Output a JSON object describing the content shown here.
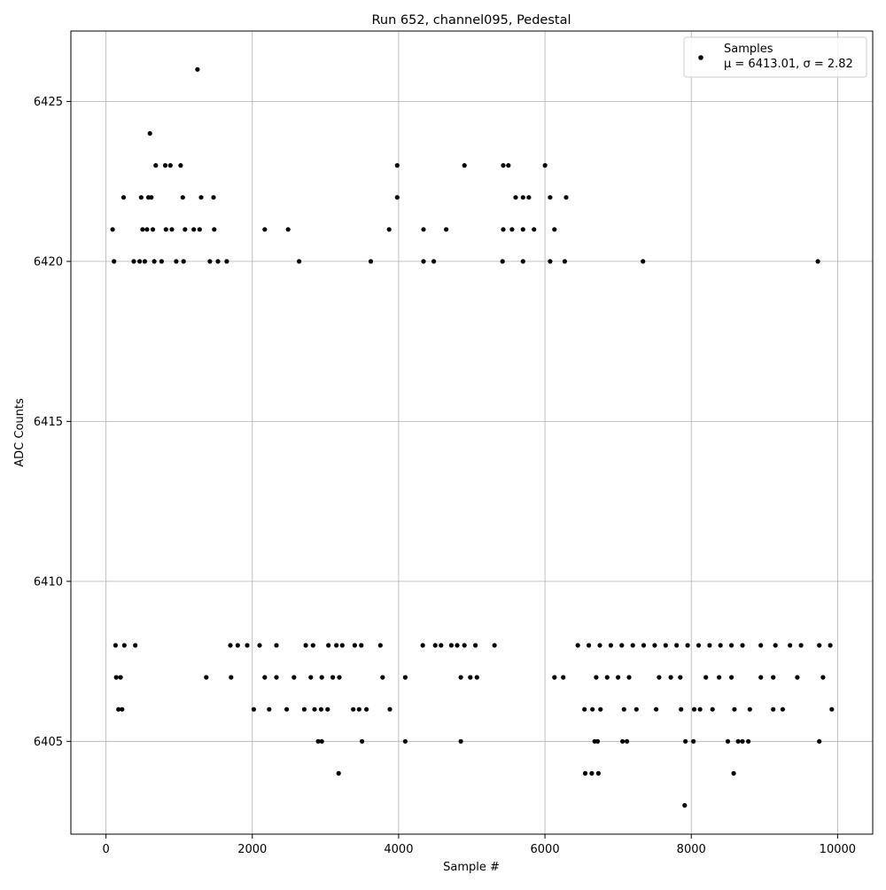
{
  "chart_data": {
    "type": "scatter",
    "title": "Run 652, channel095, Pedestal",
    "xlabel": "Sample #",
    "ylabel": "ADC Counts",
    "xlim": [
      -480,
      10480
    ],
    "ylim": [
      6402.1,
      6427.2
    ],
    "xticks": [
      0,
      2000,
      4000,
      6000,
      8000,
      10000
    ],
    "yticks": [
      6405,
      6410,
      6415,
      6420,
      6425
    ],
    "xtick_labels": [
      "0",
      "2000",
      "4000",
      "6000",
      "8000",
      "10000"
    ],
    "ytick_labels": [
      "6405",
      "6410",
      "6415",
      "6420",
      "6425"
    ],
    "grid": true,
    "legend_position": "top-right",
    "marker_color": "#000000",
    "series": [
      {
        "name": "Samples",
        "stats_label": "μ = 6413.01, σ = 2.82",
        "n_samples": 10000,
        "points": [
          {
            "x": 1250,
            "y": 6426
          },
          {
            "x": 600,
            "y": 6424
          },
          {
            "x": 680,
            "y": 6423
          },
          {
            "x": 810,
            "y": 6423
          },
          {
            "x": 880,
            "y": 6423
          },
          {
            "x": 1020,
            "y": 6423
          },
          {
            "x": 3980,
            "y": 6423
          },
          {
            "x": 4900,
            "y": 6423
          },
          {
            "x": 5430,
            "y": 6423
          },
          {
            "x": 5500,
            "y": 6423
          },
          {
            "x": 6000,
            "y": 6423
          },
          {
            "x": 240,
            "y": 6422
          },
          {
            "x": 480,
            "y": 6422
          },
          {
            "x": 580,
            "y": 6422
          },
          {
            "x": 620,
            "y": 6422
          },
          {
            "x": 1050,
            "y": 6422
          },
          {
            "x": 1300,
            "y": 6422
          },
          {
            "x": 1470,
            "y": 6422
          },
          {
            "x": 3980,
            "y": 6422
          },
          {
            "x": 5600,
            "y": 6422
          },
          {
            "x": 5700,
            "y": 6422
          },
          {
            "x": 5780,
            "y": 6422
          },
          {
            "x": 6070,
            "y": 6422
          },
          {
            "x": 6290,
            "y": 6422
          },
          {
            "x": 90,
            "y": 6421
          },
          {
            "x": 500,
            "y": 6421
          },
          {
            "x": 560,
            "y": 6421
          },
          {
            "x": 640,
            "y": 6421
          },
          {
            "x": 820,
            "y": 6421
          },
          {
            "x": 900,
            "y": 6421
          },
          {
            "x": 1080,
            "y": 6421
          },
          {
            "x": 1200,
            "y": 6421
          },
          {
            "x": 1280,
            "y": 6421
          },
          {
            "x": 1480,
            "y": 6421
          },
          {
            "x": 2170,
            "y": 6421
          },
          {
            "x": 2490,
            "y": 6421
          },
          {
            "x": 3870,
            "y": 6421
          },
          {
            "x": 4340,
            "y": 6421
          },
          {
            "x": 4650,
            "y": 6421
          },
          {
            "x": 5430,
            "y": 6421
          },
          {
            "x": 5550,
            "y": 6421
          },
          {
            "x": 5700,
            "y": 6421
          },
          {
            "x": 5850,
            "y": 6421
          },
          {
            "x": 6130,
            "y": 6421
          },
          {
            "x": 110,
            "y": 6420
          },
          {
            "x": 380,
            "y": 6420
          },
          {
            "x": 460,
            "y": 6420
          },
          {
            "x": 530,
            "y": 6420
          },
          {
            "x": 660,
            "y": 6420
          },
          {
            "x": 760,
            "y": 6420
          },
          {
            "x": 960,
            "y": 6420
          },
          {
            "x": 1060,
            "y": 6420
          },
          {
            "x": 1420,
            "y": 6420
          },
          {
            "x": 1530,
            "y": 6420
          },
          {
            "x": 1650,
            "y": 6420
          },
          {
            "x": 2640,
            "y": 6420
          },
          {
            "x": 3620,
            "y": 6420
          },
          {
            "x": 4340,
            "y": 6420
          },
          {
            "x": 4480,
            "y": 6420
          },
          {
            "x": 5420,
            "y": 6420
          },
          {
            "x": 5700,
            "y": 6420
          },
          {
            "x": 6070,
            "y": 6420
          },
          {
            "x": 6270,
            "y": 6420
          },
          {
            "x": 7340,
            "y": 6420
          },
          {
            "x": 9730,
            "y": 6420
          },
          {
            "x": 3180,
            "y": 6404
          },
          {
            "x": 6550,
            "y": 6404
          },
          {
            "x": 6640,
            "y": 6404
          },
          {
            "x": 6730,
            "y": 6404
          },
          {
            "x": 8580,
            "y": 6404
          },
          {
            "x": 7910,
            "y": 6403
          },
          {
            "x": 2900,
            "y": 6405
          },
          {
            "x": 2950,
            "y": 6405
          },
          {
            "x": 3500,
            "y": 6405
          },
          {
            "x": 4090,
            "y": 6405
          },
          {
            "x": 4850,
            "y": 6405
          },
          {
            "x": 6680,
            "y": 6405
          },
          {
            "x": 6720,
            "y": 6405
          },
          {
            "x": 7060,
            "y": 6405
          },
          {
            "x": 7120,
            "y": 6405
          },
          {
            "x": 7920,
            "y": 6405
          },
          {
            "x": 8030,
            "y": 6405
          },
          {
            "x": 8500,
            "y": 6405
          },
          {
            "x": 8640,
            "y": 6405
          },
          {
            "x": 8700,
            "y": 6405
          },
          {
            "x": 8780,
            "y": 6405
          },
          {
            "x": 9750,
            "y": 6405
          },
          {
            "x": 170,
            "y": 6406
          },
          {
            "x": 220,
            "y": 6406
          },
          {
            "x": 2020,
            "y": 6406
          },
          {
            "x": 2230,
            "y": 6406
          },
          {
            "x": 2470,
            "y": 6406
          },
          {
            "x": 2710,
            "y": 6406
          },
          {
            "x": 2850,
            "y": 6406
          },
          {
            "x": 2940,
            "y": 6406
          },
          {
            "x": 3030,
            "y": 6406
          },
          {
            "x": 3380,
            "y": 6406
          },
          {
            "x": 3460,
            "y": 6406
          },
          {
            "x": 3560,
            "y": 6406
          },
          {
            "x": 3880,
            "y": 6406
          },
          {
            "x": 6540,
            "y": 6406
          },
          {
            "x": 6650,
            "y": 6406
          },
          {
            "x": 6760,
            "y": 6406
          },
          {
            "x": 7080,
            "y": 6406
          },
          {
            "x": 7250,
            "y": 6406
          },
          {
            "x": 7520,
            "y": 6406
          },
          {
            "x": 7860,
            "y": 6406
          },
          {
            "x": 8040,
            "y": 6406
          },
          {
            "x": 8120,
            "y": 6406
          },
          {
            "x": 8290,
            "y": 6406
          },
          {
            "x": 8590,
            "y": 6406
          },
          {
            "x": 8800,
            "y": 6406
          },
          {
            "x": 9120,
            "y": 6406
          },
          {
            "x": 9250,
            "y": 6406
          },
          {
            "x": 9920,
            "y": 6406
          },
          {
            "x": 140,
            "y": 6407
          },
          {
            "x": 200,
            "y": 6407
          },
          {
            "x": 1370,
            "y": 6407
          },
          {
            "x": 1710,
            "y": 6407
          },
          {
            "x": 2170,
            "y": 6407
          },
          {
            "x": 2330,
            "y": 6407
          },
          {
            "x": 2570,
            "y": 6407
          },
          {
            "x": 2800,
            "y": 6407
          },
          {
            "x": 2950,
            "y": 6407
          },
          {
            "x": 3100,
            "y": 6407
          },
          {
            "x": 3190,
            "y": 6407
          },
          {
            "x": 3780,
            "y": 6407
          },
          {
            "x": 4090,
            "y": 6407
          },
          {
            "x": 4850,
            "y": 6407
          },
          {
            "x": 4980,
            "y": 6407
          },
          {
            "x": 5070,
            "y": 6407
          },
          {
            "x": 6130,
            "y": 6407
          },
          {
            "x": 6250,
            "y": 6407
          },
          {
            "x": 6700,
            "y": 6407
          },
          {
            "x": 6850,
            "y": 6407
          },
          {
            "x": 7000,
            "y": 6407
          },
          {
            "x": 7150,
            "y": 6407
          },
          {
            "x": 7560,
            "y": 6407
          },
          {
            "x": 7720,
            "y": 6407
          },
          {
            "x": 7850,
            "y": 6407
          },
          {
            "x": 8200,
            "y": 6407
          },
          {
            "x": 8380,
            "y": 6407
          },
          {
            "x": 8550,
            "y": 6407
          },
          {
            "x": 8950,
            "y": 6407
          },
          {
            "x": 9120,
            "y": 6407
          },
          {
            "x": 9450,
            "y": 6407
          },
          {
            "x": 9800,
            "y": 6407
          },
          {
            "x": 130,
            "y": 6408
          },
          {
            "x": 250,
            "y": 6408
          },
          {
            "x": 400,
            "y": 6408
          },
          {
            "x": 1700,
            "y": 6408
          },
          {
            "x": 1800,
            "y": 6408
          },
          {
            "x": 1930,
            "y": 6408
          },
          {
            "x": 2100,
            "y": 6408
          },
          {
            "x": 2330,
            "y": 6408
          },
          {
            "x": 2730,
            "y": 6408
          },
          {
            "x": 2830,
            "y": 6408
          },
          {
            "x": 3040,
            "y": 6408
          },
          {
            "x": 3150,
            "y": 6408
          },
          {
            "x": 3230,
            "y": 6408
          },
          {
            "x": 3400,
            "y": 6408
          },
          {
            "x": 3490,
            "y": 6408
          },
          {
            "x": 3750,
            "y": 6408
          },
          {
            "x": 4330,
            "y": 6408
          },
          {
            "x": 4500,
            "y": 6408
          },
          {
            "x": 4580,
            "y": 6408
          },
          {
            "x": 4720,
            "y": 6408
          },
          {
            "x": 4800,
            "y": 6408
          },
          {
            "x": 4900,
            "y": 6408
          },
          {
            "x": 5050,
            "y": 6408
          },
          {
            "x": 5310,
            "y": 6408
          },
          {
            "x": 6450,
            "y": 6408
          },
          {
            "x": 6600,
            "y": 6408
          },
          {
            "x": 6750,
            "y": 6408
          },
          {
            "x": 6900,
            "y": 6408
          },
          {
            "x": 7050,
            "y": 6408
          },
          {
            "x": 7200,
            "y": 6408
          },
          {
            "x": 7350,
            "y": 6408
          },
          {
            "x": 7500,
            "y": 6408
          },
          {
            "x": 7650,
            "y": 6408
          },
          {
            "x": 7800,
            "y": 6408
          },
          {
            "x": 7950,
            "y": 6408
          },
          {
            "x": 8100,
            "y": 6408
          },
          {
            "x": 8250,
            "y": 6408
          },
          {
            "x": 8400,
            "y": 6408
          },
          {
            "x": 8550,
            "y": 6408
          },
          {
            "x": 8700,
            "y": 6408
          },
          {
            "x": 8950,
            "y": 6408
          },
          {
            "x": 9150,
            "y": 6408
          },
          {
            "x": 9350,
            "y": 6408
          },
          {
            "x": 9500,
            "y": 6408
          },
          {
            "x": 9750,
            "y": 6408
          },
          {
            "x": 9900,
            "y": 6408
          }
        ]
      }
    ]
  }
}
